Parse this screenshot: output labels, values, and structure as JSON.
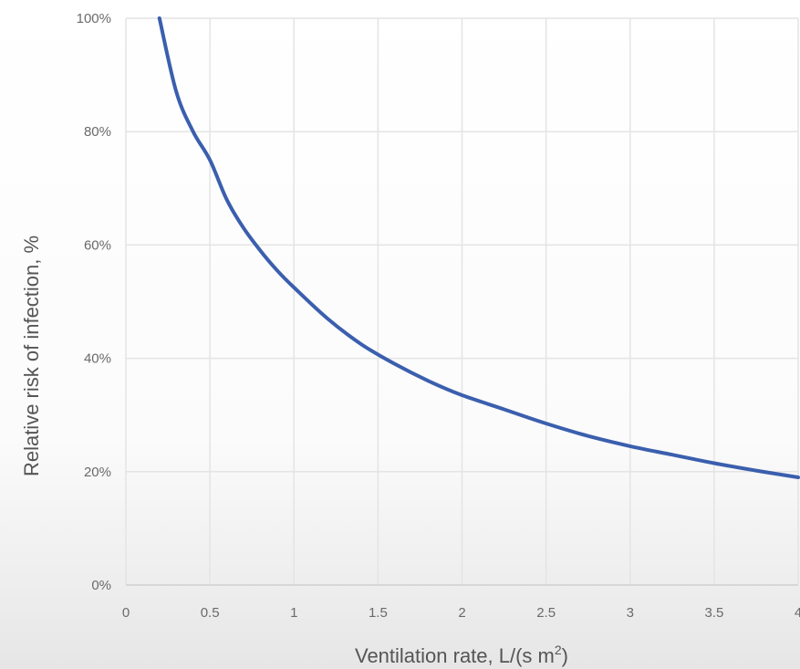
{
  "chart_data": {
    "type": "line",
    "title": "",
    "xlabel": "Ventilation rate, L/(s m",
    "xlabel_sup": "2",
    "xlabel_suffix": ")",
    "ylabel": "Relative risk of infection, %",
    "xlim": [
      0,
      4
    ],
    "ylim": [
      0,
      100
    ],
    "x_ticks": [
      0,
      0.5,
      1,
      1.5,
      2,
      2.5,
      3,
      3.5,
      4
    ],
    "x_tick_labels": [
      "0",
      "0.5",
      "1",
      "1.5",
      "2",
      "2.5",
      "3",
      "3.5",
      "4"
    ],
    "y_ticks": [
      0,
      20,
      40,
      60,
      80,
      100
    ],
    "y_tick_labels": [
      "0%",
      "20%",
      "40%",
      "60%",
      "80%",
      "100%"
    ],
    "grid": true,
    "legend": "none",
    "series": [
      {
        "color": "#3b5fae",
        "x": [
          0.2,
          0.3,
          0.4,
          0.5,
          0.6,
          0.7,
          0.8,
          0.9,
          1.0,
          1.2,
          1.4,
          1.6,
          1.8,
          2.0,
          2.25,
          2.5,
          2.75,
          3.0,
          3.25,
          3.5,
          3.75,
          4.0
        ],
        "y": [
          100,
          87,
          80,
          75,
          68,
          63,
          59,
          55.5,
          52.5,
          47,
          42.5,
          39,
          36,
          33.5,
          31,
          28.5,
          26.3,
          24.5,
          23,
          21.5,
          20.2,
          19
        ]
      }
    ]
  }
}
